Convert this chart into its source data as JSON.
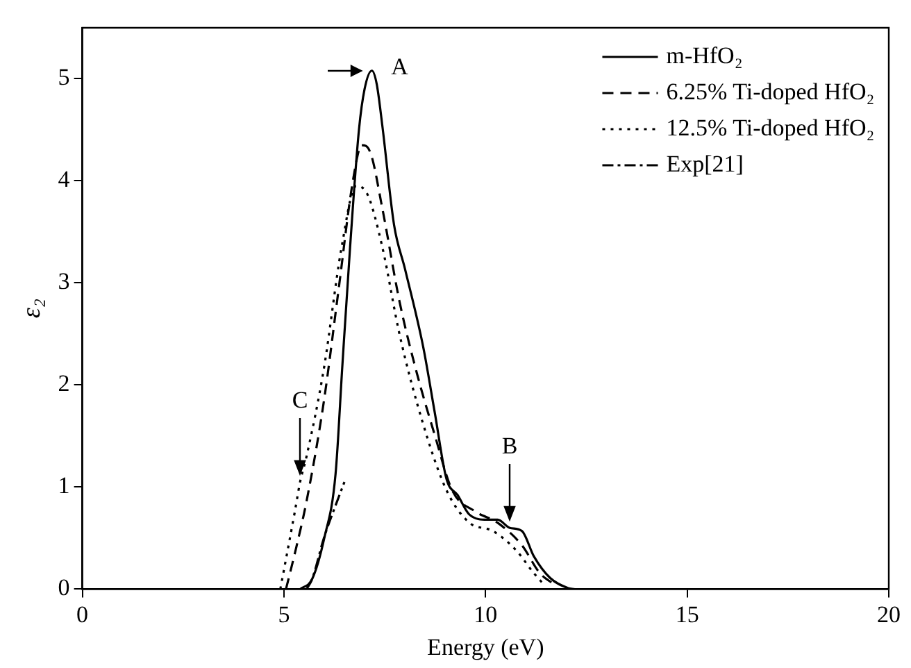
{
  "chart_data": {
    "type": "line",
    "xlabel": "Energy (eV)",
    "ylabel": "ε₂",
    "xlim": [
      0,
      20
    ],
    "ylim": [
      0,
      5.5
    ],
    "xticks": [
      0,
      5,
      10,
      15,
      20
    ],
    "yticks": [
      0,
      1,
      2,
      3,
      4,
      5
    ],
    "grid": false,
    "legend": "top right",
    "marker": "none",
    "series": [
      {
        "name": "m-HfO₂",
        "color": "#000000",
        "line_style": "solid",
        "x": [
          5.4,
          5.7,
          6.0,
          6.28,
          6.45,
          6.64,
          6.86,
          7.0,
          7.18,
          7.3,
          7.44,
          7.73,
          8.0,
          8.45,
          8.74,
          9.03,
          9.31,
          9.6,
          10.04,
          10.3,
          10.6,
          10.9,
          11.2,
          11.6,
          12.05,
          12.2
        ],
        "values": [
          0,
          0.1,
          0.5,
          1.13,
          2.2,
          3.35,
          4.5,
          4.9,
          5.08,
          4.95,
          4.54,
          3.57,
          3.14,
          2.38,
          1.73,
          1.08,
          0.92,
          0.73,
          0.68,
          0.68,
          0.6,
          0.57,
          0.32,
          0.11,
          0.01,
          0
        ]
      },
      {
        "name": "6.25% Ti-doped HfO₂",
        "color": "#000000",
        "line_style": "dashed",
        "x": [
          5.05,
          5.3,
          5.56,
          5.99,
          6.35,
          6.71,
          6.93,
          7.15,
          7.44,
          7.87,
          8.3,
          8.74,
          9.17,
          9.75,
          10.3,
          10.9,
          11.34,
          11.77
        ],
        "values": [
          0,
          0.4,
          0.86,
          1.84,
          2.92,
          4.0,
          4.35,
          4.27,
          3.73,
          2.81,
          2.11,
          1.51,
          0.97,
          0.76,
          0.65,
          0.43,
          0.16,
          0.03
        ]
      },
      {
        "name": "12.5% Ti-doped HfO₂",
        "color": "#000000",
        "line_style": "dotted",
        "x": [
          4.91,
          5.27,
          5.4,
          5.56,
          5.99,
          6.43,
          6.79,
          7.08,
          7.44,
          7.87,
          8.45,
          9.03,
          9.6,
          10.18,
          10.76,
          11.19,
          11.48
        ],
        "values": [
          0,
          0.76,
          1.05,
          1.3,
          2.16,
          3.35,
          3.95,
          3.86,
          3.35,
          2.49,
          1.62,
          0.97,
          0.65,
          0.57,
          0.38,
          0.16,
          0.03
        ]
      },
      {
        "name": "Exp[21]",
        "color": "#000000",
        "line_style": "dashdot",
        "x": [
          5.56,
          5.7,
          5.99,
          6.28,
          6.5
        ],
        "values": [
          0,
          0.1,
          0.5,
          0.82,
          1.05
        ]
      }
    ],
    "annotations": [
      {
        "text": "A",
        "x": 7.18,
        "y": 5.08
      },
      {
        "text": "B",
        "x": 10.6,
        "y": 0.6
      },
      {
        "text": "C",
        "x": 5.4,
        "y": 1.05
      }
    ]
  }
}
